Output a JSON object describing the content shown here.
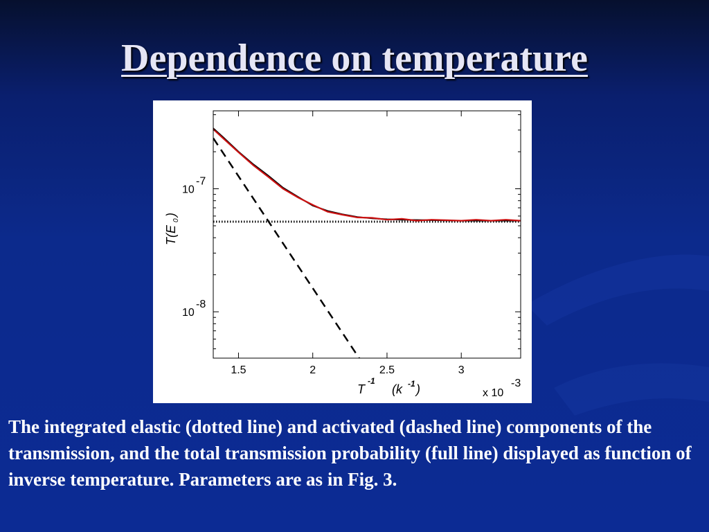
{
  "slide": {
    "title": "Dependence on temperature",
    "caption": "The integrated elastic (dotted line) and activated (dashed line) components of the transmission, and the total transmission probability (full line) displayed as function of inverse temperature. Parameters are as in Fig. 3."
  },
  "colors": {
    "background": "#0c2a8c",
    "title": "#e6e6f5",
    "caption": "#ffffff",
    "total_line": "#cc1111"
  },
  "chart_data": {
    "type": "line",
    "title": "",
    "xlabel": "T -1 (k -1)",
    "xlabel_parts": {
      "base": "T",
      "exp": "-1",
      "unit_base": "(k",
      "unit_exp": "-1",
      "unit_close": ")"
    },
    "ylabel": "T(E0)",
    "ylabel_parts": {
      "main": "T(E",
      "sub": "0",
      "close": ")"
    },
    "x_multiplier": {
      "base": "x 10",
      "exp": "-3"
    },
    "xlim": [
      1.33,
      3.4
    ],
    "ylim": [
      4.2e-09,
      4.3e-07
    ],
    "yscale": "log",
    "xticks": [
      {
        "value": 1.5,
        "label": "1.5"
      },
      {
        "value": 2.0,
        "label": "2"
      },
      {
        "value": 2.5,
        "label": "2.5"
      },
      {
        "value": 3.0,
        "label": "3"
      }
    ],
    "yticks": [
      {
        "value": 1e-07,
        "base": "10",
        "exp": "-7"
      },
      {
        "value": 1e-08,
        "base": "10",
        "exp": "-8"
      }
    ],
    "grid": false,
    "series": [
      {
        "style": "dotted",
        "color": "#000000",
        "x": [
          1.33,
          3.4
        ],
        "y": [
          5.4e-08,
          5.4e-08
        ]
      },
      {
        "style": "dashed",
        "color": "#000000",
        "x": [
          1.33,
          2.33
        ],
        "y": [
          2.58e-07,
          3.9e-09
        ]
      },
      {
        "style": "solid",
        "color": "#000000",
        "x": [
          1.33,
          1.4,
          1.5,
          1.6,
          1.7,
          1.8,
          1.9,
          2.0,
          2.1,
          2.2,
          2.3,
          2.4,
          2.5,
          2.6,
          2.8,
          3.0,
          3.2,
          3.4
        ],
        "y": [
          3.1e-07,
          2.6e-07,
          2e-07,
          1.58e-07,
          1.28e-07,
          1.02e-07,
          8.6e-08,
          7.3e-08,
          6.6e-08,
          6.2e-08,
          5.9e-08,
          5.75e-08,
          5.65e-08,
          5.6e-08,
          5.55e-08,
          5.5e-08,
          5.5e-08,
          5.5e-08
        ]
      },
      {
        "style": "solid",
        "color": "#cc1111",
        "x": [
          1.33,
          1.4,
          1.5,
          1.6,
          1.7,
          1.8,
          1.9,
          2.0,
          2.1,
          2.2,
          2.3,
          2.4,
          2.5,
          2.6,
          2.7,
          2.8,
          2.9,
          3.0,
          3.1,
          3.2,
          3.3,
          3.4
        ],
        "y": [
          3.05e-07,
          2.55e-07,
          1.98e-07,
          1.55e-07,
          1.25e-07,
          1e-07,
          8.5e-08,
          7.4e-08,
          6.5e-08,
          6.15e-08,
          5.85e-08,
          5.8e-08,
          5.6e-08,
          5.7e-08,
          5.5e-08,
          5.6e-08,
          5.55e-08,
          5.5e-08,
          5.6e-08,
          5.5e-08,
          5.6e-08,
          5.5e-08
        ]
      }
    ]
  }
}
